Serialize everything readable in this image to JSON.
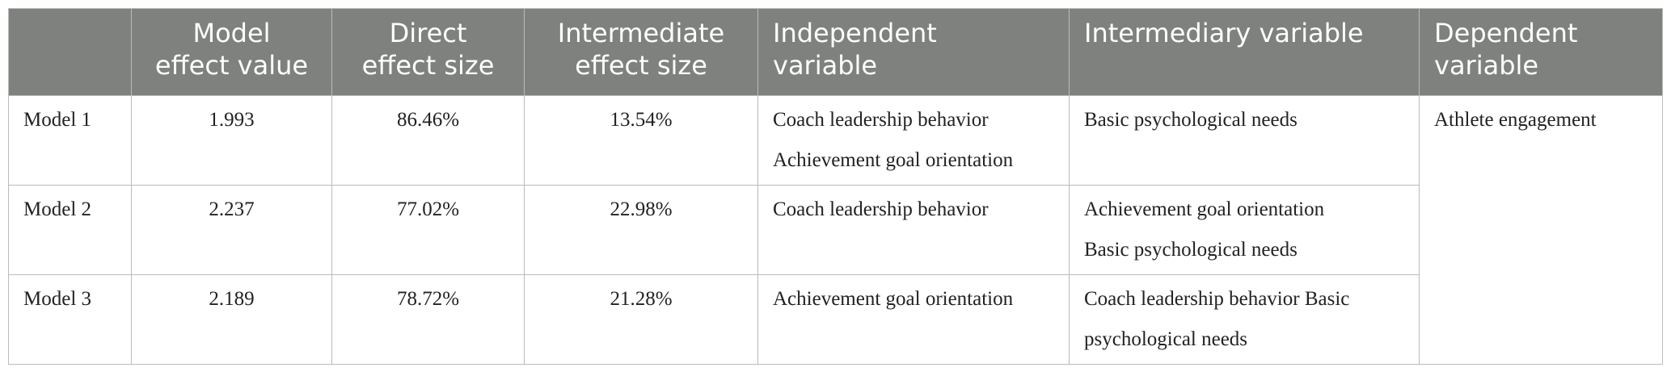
{
  "table": {
    "header": [
      [],
      [
        "Model",
        "effect value"
      ],
      [
        "Direct",
        "effect size"
      ],
      [
        "Intermediate",
        "effect size"
      ],
      [
        "Independent",
        "variable"
      ],
      [
        "Intermediary variable"
      ],
      [
        "Dependent",
        "variable"
      ]
    ],
    "rows": [
      [
        "Model 1",
        "1.993",
        "86.46%",
        "13.54%",
        [
          "Coach leadership behavior",
          "Achievement goal orientation"
        ],
        [
          "Basic psychological needs"
        ]
      ],
      [
        "Model 2",
        "2.237",
        "77.02%",
        "22.98%",
        [
          "Coach leadership behavior"
        ],
        [
          "Achievement goal orientation",
          "Basic psychological needs"
        ]
      ],
      [
        "Model 3",
        "2.189",
        "78.72%",
        "21.28%",
        [
          "Achievement goal orientation"
        ],
        [
          "Coach leadership behavior Basic psychological needs"
        ]
      ]
    ],
    "dependent": "Athlete engagement"
  }
}
